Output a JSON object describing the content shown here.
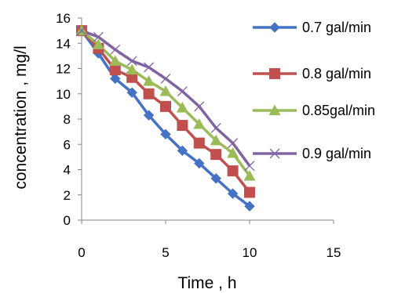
{
  "chart_data": {
    "type": "line",
    "title": "",
    "xlabel": "Time , h",
    "ylabel": "concentration , mg/l",
    "xlim": [
      0,
      15
    ],
    "ylim": [
      0,
      16
    ],
    "xticks": [
      0,
      5,
      10,
      15
    ],
    "yticks": [
      0,
      2,
      4,
      6,
      8,
      10,
      12,
      14,
      16
    ],
    "grid": false,
    "legend_position": "right",
    "x": [
      0,
      1,
      2,
      3,
      4,
      5,
      6,
      7,
      8,
      9,
      10
    ],
    "series": [
      {
        "name": "0.7 gal/min",
        "color": "#4472C4",
        "marker": "diamond",
        "values": [
          15.0,
          13.2,
          11.2,
          10.1,
          8.3,
          6.8,
          5.5,
          4.5,
          3.3,
          2.1,
          1.1
        ]
      },
      {
        "name": "0.8 gal/min",
        "color": "#C0504D",
        "marker": "square",
        "values": [
          15.0,
          13.6,
          11.9,
          11.3,
          10.0,
          9.0,
          7.5,
          6.1,
          5.2,
          3.9,
          2.2
        ]
      },
      {
        "name": "0.85gal/min",
        "color": "#9BBB59",
        "marker": "triangle",
        "values": [
          15.0,
          13.9,
          12.6,
          11.9,
          11.0,
          10.2,
          8.9,
          7.6,
          6.3,
          5.3,
          3.5
        ]
      },
      {
        "name": "0.9 gal/min",
        "color": "#8064A2",
        "marker": "cross",
        "values": [
          15.0,
          14.5,
          13.5,
          12.6,
          12.1,
          11.2,
          10.2,
          9.0,
          7.3,
          6.1,
          4.3
        ]
      }
    ]
  }
}
